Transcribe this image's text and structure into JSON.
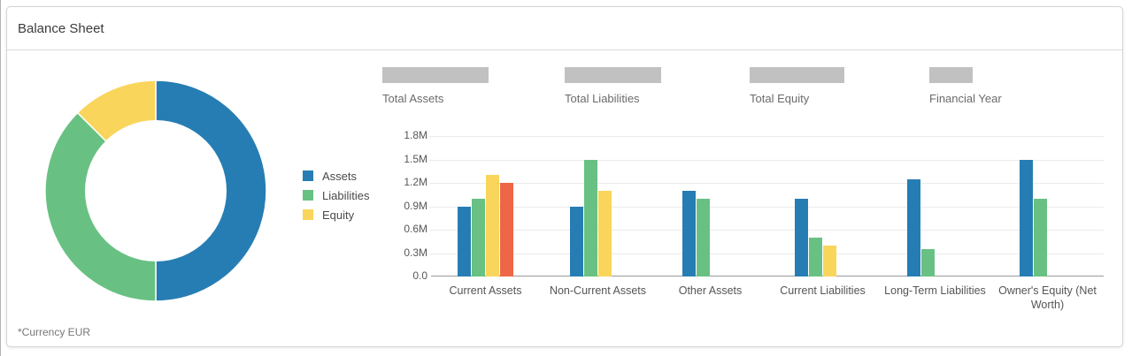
{
  "header": {
    "title": "Balance Sheet"
  },
  "kpis": [
    {
      "label": "Total Assets",
      "placeholder_width": 120
    },
    {
      "label": "Total Liabilities",
      "placeholder_width": 109
    },
    {
      "label": "Total Equity",
      "placeholder_width": 107
    },
    {
      "label": "Financial Year",
      "placeholder_width": 49
    }
  ],
  "legend": {
    "position": "left-of-bar-chart",
    "items": [
      {
        "label": "Assets",
        "color": "#267db3"
      },
      {
        "label": "Liabilities",
        "color": "#68c182"
      },
      {
        "label": "Equity",
        "color": "#fad55c"
      }
    ]
  },
  "footer": {
    "currency_note": "*Currency EUR"
  },
  "colors": {
    "blue": "#267db3",
    "green": "#68c182",
    "yellow": "#fad55c",
    "red": "#ed6647",
    "placeholder_gray": "#c1c1c1",
    "gridline": "#ebebeb",
    "axis_line": "#999999"
  },
  "chart_data": [
    {
      "type": "pie",
      "subtype": "donut",
      "title": "",
      "slices": [
        {
          "label": "Assets",
          "percent": 50,
          "color": "#267db3"
        },
        {
          "label": "Liabilities",
          "percent": 37.5,
          "color": "#68c182"
        },
        {
          "label": "Equity",
          "percent": 12.5,
          "color": "#fad55c"
        }
      ],
      "note": "*Currency EUR"
    },
    {
      "type": "bar",
      "title": "",
      "categories": [
        "Current Assets",
        "Non-Current Assets",
        "Other Assets",
        "Current Liabilities",
        "Long-Term Liabilities",
        "Owner's Equity (Net Worth)"
      ],
      "series": [
        {
          "name": "blue-series",
          "color": "#267db3",
          "values": [
            0.9,
            0.9,
            1.1,
            1.0,
            1.25,
            1.5
          ]
        },
        {
          "name": "green-series",
          "color": "#68c182",
          "values": [
            1.0,
            1.5,
            1.0,
            0.5,
            0.35,
            1.0
          ]
        },
        {
          "name": "yellow-series",
          "color": "#fad55c",
          "values": [
            1.3,
            1.1,
            null,
            0.4,
            null,
            null
          ]
        },
        {
          "name": "red-series",
          "color": "#ed6647",
          "values": [
            1.2,
            null,
            null,
            null,
            null,
            null
          ]
        }
      ],
      "xlabel": "",
      "ylabel": "",
      "ylim": [
        0,
        1.8
      ],
      "yticks": [
        {
          "value": 0,
          "label": "0.0"
        },
        {
          "value": 0.3,
          "label": "0.3M"
        },
        {
          "value": 0.6,
          "label": "0.6M"
        },
        {
          "value": 0.9,
          "label": "0.9M"
        },
        {
          "value": 1.2,
          "label": "1.2M"
        },
        {
          "value": 1.5,
          "label": "1.5M"
        },
        {
          "value": 1.8,
          "label": "1.8M"
        }
      ],
      "grid": true,
      "legend_position": "left"
    }
  ]
}
